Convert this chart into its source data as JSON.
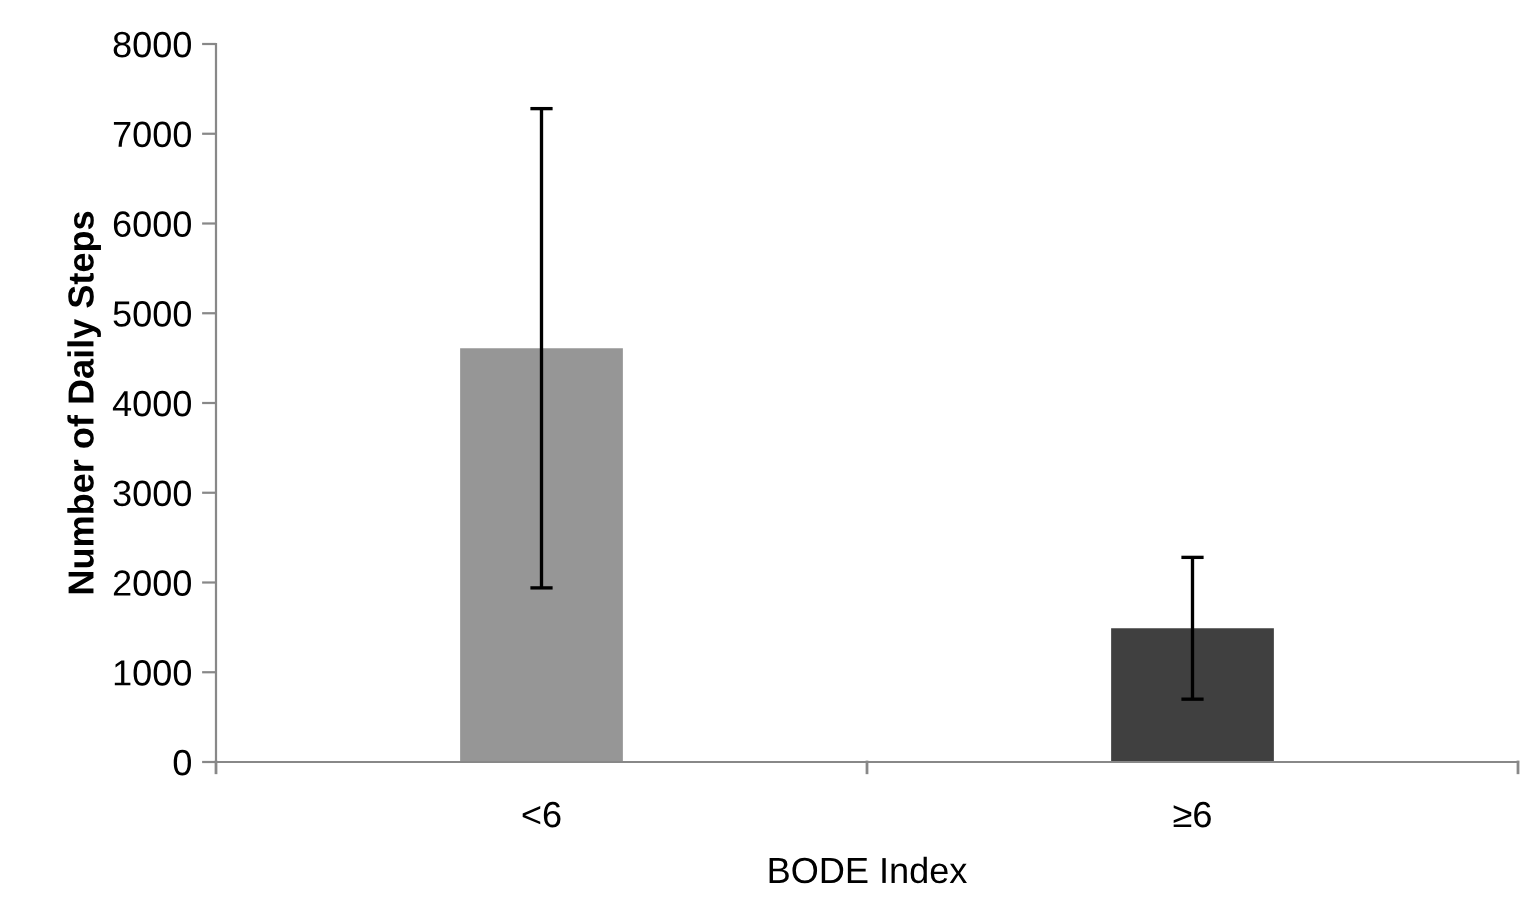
{
  "chart_data": {
    "type": "bar",
    "xlabel": "BODE Index",
    "ylabel": "Number of Daily Steps",
    "categories": [
      "<6",
      "≥6"
    ],
    "values": [
      4610,
      1490
    ],
    "colors": [
      "#969696",
      "#404040"
    ],
    "errors": [
      2670,
      790
    ],
    "ylim": [
      0,
      8000
    ],
    "yticks": [
      0,
      1000,
      2000,
      3000,
      4000,
      5000,
      6000,
      7000,
      8000
    ],
    "grid": false,
    "legend": false
  }
}
